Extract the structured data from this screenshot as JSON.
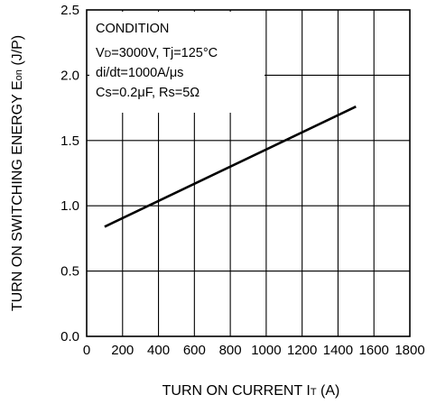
{
  "chart_data": {
    "type": "line",
    "xlabel": "TURN ON CURRENT IT (A)",
    "xlabel_main": "TURN ON CURRENT I",
    "xlabel_sub": "T",
    "xlabel_unit": " (A)",
    "ylabel": "TURN ON SWITCHING ENERGY Eon (J/P)",
    "ylabel_main": "TURN ON SWITCHING ENERGY E",
    "ylabel_sub": "on",
    "ylabel_unit": " (J/P)",
    "xlim": [
      0,
      1800
    ],
    "ylim": [
      0,
      2.5
    ],
    "x_ticks": [
      0,
      200,
      400,
      600,
      800,
      1000,
      1200,
      1400,
      1600,
      1800
    ],
    "x_tick_labels": [
      "0",
      "200",
      "400",
      "600",
      "800",
      "1000",
      "1200",
      "1400",
      "1600",
      "1800"
    ],
    "y_ticks": [
      0,
      0.5,
      1.0,
      1.5,
      2.0,
      2.5
    ],
    "y_tick_labels": [
      "0.0",
      "0.5",
      "1.0",
      "1.5",
      "2.0",
      "2.5"
    ],
    "grid": true,
    "series": [
      {
        "x": [
          100,
          1500
        ],
        "y": [
          0.84,
          1.76
        ]
      }
    ],
    "annotation": {
      "title": "CONDITION",
      "line1_v": "V",
      "line1_sub": "D",
      "line1_rest": "=3000V, Tj=125°C",
      "line2": "di/dt=1000A/μs",
      "line3": "Cs=0.2μF, Rs=5Ω"
    }
  }
}
